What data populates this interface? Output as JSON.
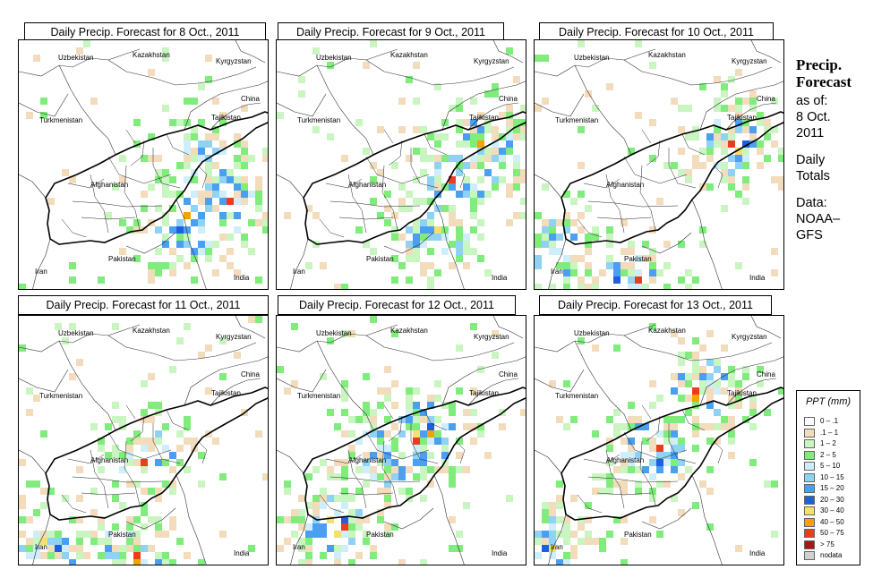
{
  "panels": [
    {
      "title": "Daily Precip. Forecast for  8 Oct., 2011"
    },
    {
      "title": "Daily Precip. Forecast for  9 Oct., 2011"
    },
    {
      "title": "Daily Precip. Forecast for  10 Oct., 2011"
    },
    {
      "title": "Daily Precip. Forecast for  11 Oct., 2011"
    },
    {
      "title": "Daily Precip. Forecast for  12 Oct., 2011"
    },
    {
      "title": "Daily Precip. Forecast for  13 Oct., 2011"
    }
  ],
  "map_labels": {
    "kazakhstan": "Kazakhstan",
    "uzbekistan": "Uzbekistan",
    "kyrgyzstan": "Kyrgyzstan",
    "china": "China",
    "turkmenistan": "Turkmenistan",
    "tajikistan": "Tajikistan",
    "afghanistan": "Afghanistan",
    "iran": "Iran",
    "pakistan": "Pakistan",
    "india": "India"
  },
  "sidebar": {
    "heading_line1": "Precip.",
    "heading_line2": "Forecast",
    "asof_line1": "as of:",
    "asof_line2": "8 Oct.",
    "asof_line3": "2011",
    "totals_line1": "Daily",
    "totals_line2": "Totals",
    "data_line1": "Data:",
    "data_line2": "NOAA–",
    "data_line3": "GFS"
  },
  "legend": {
    "title": "PPT (mm)",
    "items": [
      {
        "label": "0 – .1",
        "color": "#ffffff"
      },
      {
        "label": ".1 – 1",
        "color": "#f2dcbc"
      },
      {
        "label": "1 – 2",
        "color": "#c9f5c0"
      },
      {
        "label": "2 – 5",
        "color": "#7fec7c"
      },
      {
        "label": "5 – 10",
        "color": "#cdeefa"
      },
      {
        "label": "10 – 15",
        "color": "#8fd2f4"
      },
      {
        "label": "15 – 20",
        "color": "#4a9ff0"
      },
      {
        "label": "20 – 30",
        "color": "#1e5fe0"
      },
      {
        "label": "30 – 40",
        "color": "#f5e06e"
      },
      {
        "label": "40 – 50",
        "color": "#f5a300"
      },
      {
        "label": "50 – 75",
        "color": "#ee3b1f"
      },
      {
        "label": "> 75",
        "color": "#a01818"
      },
      {
        "label": "nodata",
        "color": "#d0d0d0"
      }
    ]
  }
}
